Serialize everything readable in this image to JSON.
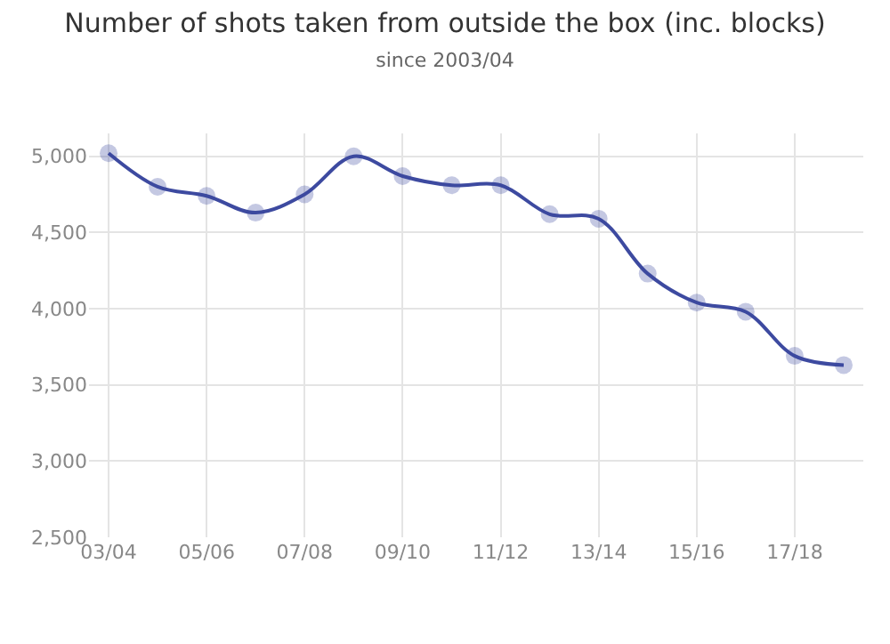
{
  "chart_data": {
    "type": "line",
    "title": "Number of shots taken from outside the box (inc. blocks)",
    "subtitle": "since 2003/04",
    "categories": [
      "03/04",
      null,
      "05/06",
      null,
      "07/08",
      null,
      "09/10",
      null,
      "11/12",
      null,
      "13/14",
      null,
      "15/16",
      null,
      "17/18",
      null
    ],
    "series": [
      {
        "color": "#3d4aa0",
        "values": [
          5020,
          4800,
          4740,
          4630,
          4750,
          5000,
          4870,
          4810,
          4810,
          4620,
          4590,
          4230,
          4040,
          3980,
          3690,
          3630
        ]
      }
    ],
    "ylim": [
      2500,
      5150
    ],
    "yticks": [
      {
        "value": 2500,
        "label": "2,500"
      },
      {
        "value": 3000,
        "label": "3,000"
      },
      {
        "value": 3500,
        "label": "3,500"
      },
      {
        "value": 4000,
        "label": "4,000"
      },
      {
        "value": 4500,
        "label": "4,500"
      },
      {
        "value": 5000,
        "label": "5,000"
      }
    ],
    "grid": true,
    "marker": "circle",
    "line_style": "solid"
  }
}
